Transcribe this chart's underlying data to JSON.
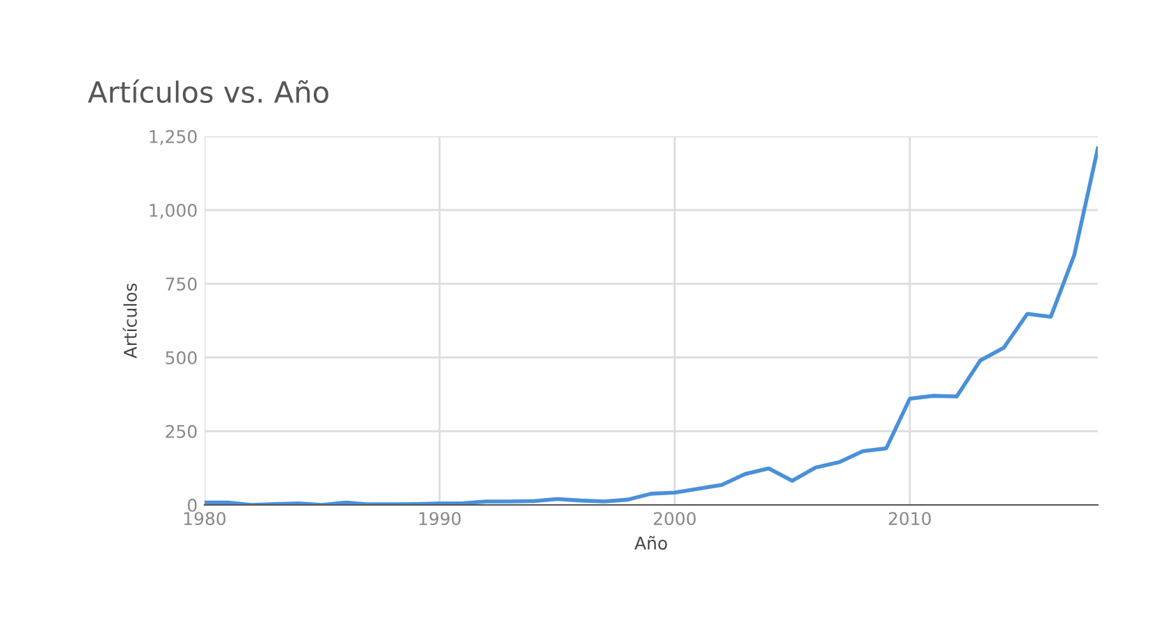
{
  "chart_data": {
    "type": "line",
    "title": "Artículos vs. Año",
    "xlabel": "Año",
    "ylabel": "Artículos",
    "x": [
      1980,
      1981,
      1982,
      1983,
      1984,
      1985,
      1986,
      1987,
      1988,
      1989,
      1990,
      1991,
      1992,
      1993,
      1994,
      1995,
      1996,
      1997,
      1998,
      1999,
      2000,
      2001,
      2002,
      2003,
      2004,
      2005,
      2006,
      2007,
      2008,
      2009,
      2010,
      2011,
      2012,
      2013,
      2014,
      2015,
      2016,
      2017,
      2018
    ],
    "series": [
      {
        "color": "#4a90d9",
        "values": [
          8,
          8,
          0,
          3,
          5,
          0,
          8,
          2,
          2,
          3,
          5,
          6,
          12,
          12,
          13,
          20,
          15,
          12,
          18,
          38,
          42,
          55,
          68,
          105,
          124,
          82,
          127,
          145,
          182,
          192,
          360,
          370,
          368,
          490,
          533,
          648,
          638,
          848,
          1209
        ]
      }
    ],
    "xlim": [
      1980,
      2018
    ],
    "ylim": [
      0,
      1250
    ],
    "xticks": [
      1980,
      1990,
      2000,
      2010
    ],
    "yticks": [
      {
        "value": 0,
        "label": "0"
      },
      {
        "value": 250,
        "label": "250"
      },
      {
        "value": 500,
        "label": "500"
      },
      {
        "value": 750,
        "label": "750"
      },
      {
        "value": 1000,
        "label": "1,000"
      },
      {
        "value": 1250,
        "label": "1,250"
      }
    ],
    "grid": true,
    "marker": "none",
    "line_style": "solid"
  }
}
